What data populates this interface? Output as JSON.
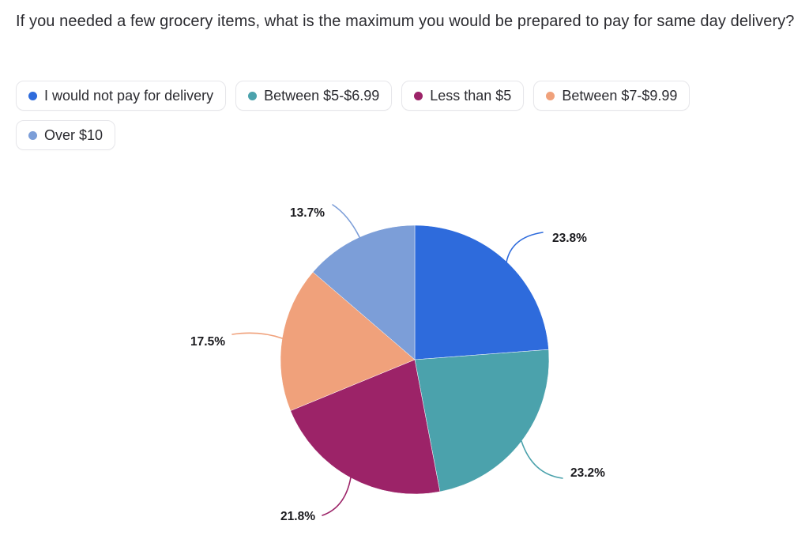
{
  "title": "If you needed a few grocery items, what is the maximum you would be prepared to pay for same day delivery?",
  "legend": {
    "items": [
      {
        "label": "I would not pay for delivery",
        "color": "#2E6BDC"
      },
      {
        "label": "Between $5-$6.99",
        "color": "#4BA2AC"
      },
      {
        "label": "Less than $5",
        "color": "#9C2368"
      },
      {
        "label": "Between $7-$9.99",
        "color": "#F0A17B"
      },
      {
        "label": "Over $10",
        "color": "#7C9ED8"
      }
    ]
  },
  "chart_data": {
    "type": "pie",
    "title": "If you needed a few grocery items, what is the maximum you would be prepared to pay for same day delivery?",
    "categories": [
      "I would not pay for delivery",
      "Between $5-$6.99",
      "Less than $5",
      "Between $7-$9.99",
      "Over $10"
    ],
    "values": [
      23.8,
      23.2,
      21.8,
      17.5,
      13.7
    ],
    "value_labels": [
      "23.8%",
      "23.2%",
      "21.8%",
      "17.5%",
      "13.7%"
    ],
    "unit": "%",
    "colors": [
      "#2E6BDC",
      "#4BA2AC",
      "#9C2368",
      "#F0A17B",
      "#7C9ED8"
    ],
    "start_angle": 0,
    "direction": "clockwise",
    "legend_position": "top",
    "label_color": "#1a1a1e"
  }
}
